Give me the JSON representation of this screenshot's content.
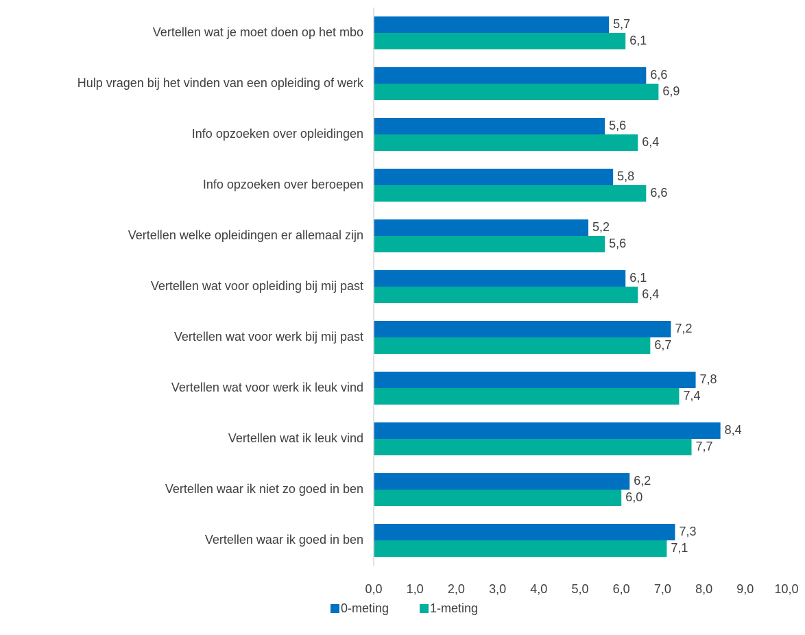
{
  "chart_data": {
    "type": "hbar",
    "categories": [
      "Vertellen wat je moet doen op het mbo",
      "Hulp vragen bij het vinden van een opleiding of werk",
      "Info opzoeken over opleidingen",
      "Info opzoeken over beroepen",
      "Vertellen welke opleidingen er allemaal zijn",
      "Vertellen wat voor opleiding bij mij past",
      "Vertellen wat voor werk bij mij past",
      "Vertellen wat voor werk ik leuk vind",
      "Vertellen wat ik leuk vind",
      "Vertellen waar ik niet zo goed in ben",
      "Vertellen waar ik goed in ben"
    ],
    "series": [
      {
        "name": "0-meting",
        "color": "#0070c0",
        "values": [
          5.7,
          6.6,
          5.6,
          5.8,
          5.2,
          6.1,
          7.2,
          7.8,
          8.4,
          6.2,
          7.3
        ],
        "value_labels": [
          "5,7",
          "6,6",
          "5,6",
          "5,8",
          "5,2",
          "6,1",
          "7,2",
          "7,8",
          "8,4",
          "6,2",
          "7,3"
        ]
      },
      {
        "name": "1-meting",
        "color": "#00b09b",
        "values": [
          6.1,
          6.9,
          6.4,
          6.6,
          5.6,
          6.4,
          6.7,
          7.4,
          7.7,
          6.0,
          7.1
        ],
        "value_labels": [
          "6,1",
          "6,9",
          "6,4",
          "6,6",
          "5,6",
          "6,4",
          "6,7",
          "7,4",
          "7,7",
          "6,0",
          "7,1"
        ]
      }
    ],
    "xlim": [
      0,
      10
    ],
    "xticks": [
      {
        "value": 0,
        "label": "0,0"
      },
      {
        "value": 1,
        "label": "1,0"
      },
      {
        "value": 2,
        "label": "2,0"
      },
      {
        "value": 3,
        "label": "3,0"
      },
      {
        "value": 4,
        "label": "4,0"
      },
      {
        "value": 5,
        "label": "5,0"
      },
      {
        "value": 6,
        "label": "6,0"
      },
      {
        "value": 7,
        "label": "7,0"
      },
      {
        "value": 8,
        "label": "8,0"
      },
      {
        "value": 9,
        "label": "9,0"
      },
      {
        "value": 10,
        "label": "10,0"
      }
    ],
    "legend": "bottom"
  }
}
